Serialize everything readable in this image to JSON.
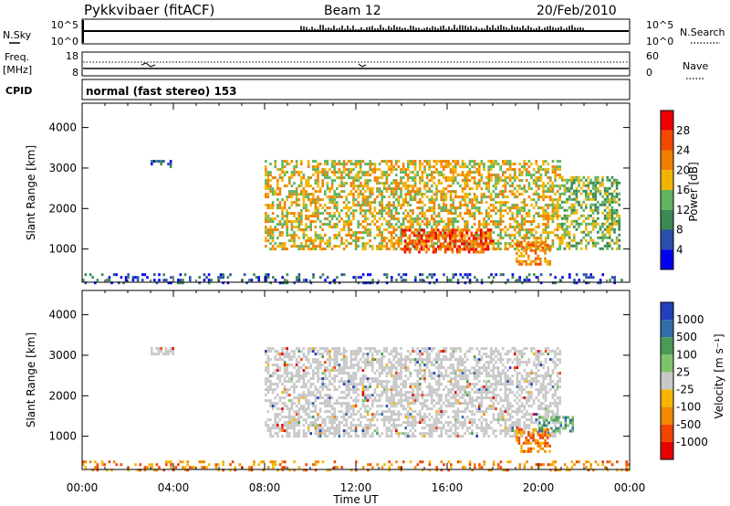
{
  "header": {
    "station": "Pykkvibaer (fitACF)",
    "beam": "Beam 12",
    "date": "20/Feb/2010"
  },
  "strips": {
    "nsky_label": "N.Sky",
    "nsky_ticks": [
      "10^5",
      "10^0"
    ],
    "nsearch_label": "N.Search",
    "nsearch_ticks": [
      "10^5",
      "10^0"
    ],
    "freq_label": "Freq.",
    "freq_unit": "[MHz]",
    "freq_ticks": [
      "18",
      "8"
    ],
    "nave_label": "Nave",
    "nave_ticks": [
      "60",
      "0"
    ],
    "cpid_label": "CPID",
    "cpid_text": "normal (fast stereo) 153"
  },
  "colors": {
    "power": [
      "#0000ee",
      "#2a4fa8",
      "#3a8a55",
      "#5fb45e",
      "#f0b400",
      "#f07f00",
      "#f04a00",
      "#ee0000"
    ],
    "velocity": [
      "#2340b8",
      "#2f6ea8",
      "#4a9a55",
      "#7dc36a",
      "#c8c8c8",
      "#f5b400",
      "#f08800",
      "#f04400",
      "#e80000"
    ],
    "ground": "#c8c8c8"
  },
  "chart_data": [
    {
      "type": "heatmap",
      "panel": "power",
      "ylabel": "Slant Range [km]",
      "xlabel": "",
      "x_range_hours": [
        0,
        24
      ],
      "ylim": [
        180,
        4600
      ],
      "y_ticks": [
        1000,
        2000,
        3000,
        4000
      ],
      "x_ticks": [
        "00:00",
        "04:00",
        "08:00",
        "12:00",
        "16:00",
        "20:00",
        "00:00"
      ],
      "colorbar": {
        "label": "Power [dB]",
        "ticks": [
          "4",
          "8",
          "12",
          "16",
          "20",
          "24",
          "28"
        ],
        "range": [
          0,
          32
        ]
      },
      "regions": [
        {
          "hours": [
            3.0,
            4.0
          ],
          "range_km": [
            3000,
            3200
          ],
          "value_db": 6
        },
        {
          "hours": [
            8.0,
            21.0
          ],
          "range_km": [
            1000,
            3200
          ],
          "value_db": 20
        },
        {
          "hours": [
            14.0,
            18.0
          ],
          "range_km": [
            950,
            1500
          ],
          "value_db": 28
        },
        {
          "hours": [
            19.0,
            20.5
          ],
          "range_km": [
            650,
            1200
          ],
          "value_db": 24
        },
        {
          "hours": [
            21.0,
            23.5
          ],
          "range_km": [
            1000,
            2800
          ],
          "value_db": 14
        },
        {
          "hours": [
            0.0,
            24.0
          ],
          "range_km": [
            180,
            400
          ],
          "value_db": 6
        }
      ]
    },
    {
      "type": "heatmap",
      "panel": "velocity",
      "ylabel": "Slant Range [km]",
      "xlabel": "Time UT",
      "x_range_hours": [
        0,
        24
      ],
      "ylim": [
        180,
        4600
      ],
      "y_ticks": [
        1000,
        2000,
        3000,
        4000
      ],
      "x_ticks": [
        "00:00",
        "04:00",
        "08:00",
        "12:00",
        "16:00",
        "20:00",
        "00:00"
      ],
      "colorbar": {
        "label": "Velocity [m s⁻¹]",
        "ticks": [
          "1000",
          "500",
          "100",
          "25",
          "-25",
          "-100",
          "-500",
          "-1000"
        ]
      },
      "regions": [
        {
          "hours": [
            3.0,
            4.0
          ],
          "range_km": [
            3000,
            3200
          ],
          "value_ms": 0
        },
        {
          "hours": [
            8.0,
            21.0
          ],
          "range_km": [
            1000,
            3200
          ],
          "value_ms": 0
        },
        {
          "hours": [
            19.0,
            20.5
          ],
          "range_km": [
            650,
            1200
          ],
          "value_ms": -300
        },
        {
          "hours": [
            20.0,
            21.5
          ],
          "range_km": [
            1100,
            1500
          ],
          "value_ms": 200
        },
        {
          "hours": [
            0.0,
            24.0
          ],
          "range_km": [
            180,
            400
          ],
          "value_ms": -80
        }
      ]
    }
  ]
}
